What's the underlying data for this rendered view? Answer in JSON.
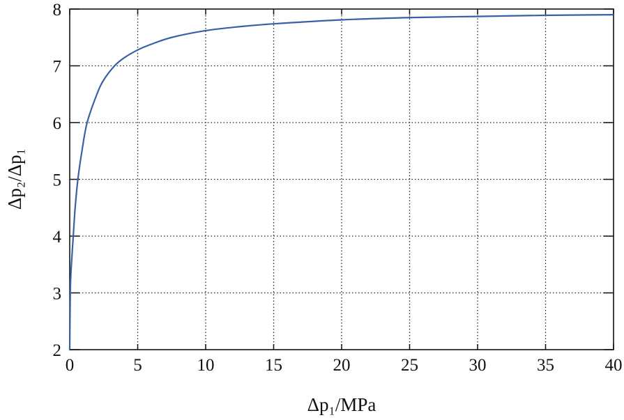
{
  "chart_data": {
    "type": "line",
    "title": "",
    "xlabel": "Δp₁/MPa",
    "ylabel": "Δp₂/Δp₁",
    "xlim": [
      0,
      40
    ],
    "ylim": [
      2,
      8
    ],
    "xticks": [
      0,
      5,
      10,
      15,
      20,
      25,
      30,
      35,
      40
    ],
    "yticks": [
      2,
      3,
      4,
      5,
      6,
      7,
      8
    ],
    "grid": true,
    "grid_style": "dotted",
    "line_color": "#3b5fa6",
    "series": [
      {
        "x": [
          0,
          0.04,
          0.1,
          0.26,
          0.4,
          0.6,
          0.9,
          1.28,
          2,
          2.5,
          3.3,
          4,
          5,
          6,
          7.5,
          10,
          12.5,
          15,
          20,
          25,
          30,
          35,
          40
        ],
        "y": [
          2,
          3,
          3.4,
          4,
          4.5,
          5,
          5.5,
          6,
          6.5,
          6.75,
          7,
          7.14,
          7.28,
          7.38,
          7.5,
          7.62,
          7.69,
          7.74,
          7.81,
          7.85,
          7.87,
          7.89,
          7.9
        ]
      }
    ]
  }
}
